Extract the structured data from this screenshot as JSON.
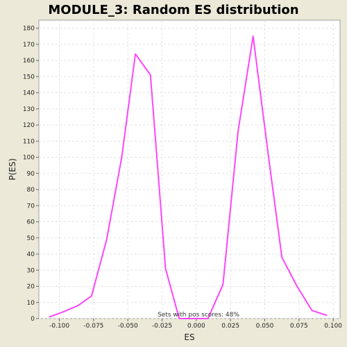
{
  "chart_data": {
    "type": "line",
    "title": "MODULE_3: Random ES distribution",
    "xlabel": "ES",
    "ylabel": "P(ES)",
    "xlim": [
      -0.115,
      0.105
    ],
    "ylim": [
      0,
      185
    ],
    "x_ticks": [
      -0.1,
      -0.075,
      -0.05,
      -0.025,
      0.0,
      0.025,
      0.05,
      0.075,
      0.1
    ],
    "x_tick_labels": [
      "-0.100",
      "-0.075",
      "-0.050",
      "-0.025",
      "0.000",
      "0.025",
      "0.050",
      "0.075",
      "0.100"
    ],
    "y_ticks": [
      0,
      10,
      20,
      30,
      40,
      50,
      60,
      70,
      80,
      90,
      100,
      110,
      120,
      130,
      140,
      150,
      160,
      170,
      180
    ],
    "grid": true,
    "annotation": "Sets with pos scores: 48%",
    "line_color": "#FF44FF",
    "series": [
      {
        "x": [
          -0.1075,
          -0.0975,
          -0.0865,
          -0.0765,
          -0.0655,
          -0.0545,
          -0.0445,
          -0.0335,
          -0.0225,
          -0.0125,
          -0.0015,
          0.0085,
          0.0195,
          0.0305,
          0.0415,
          0.0525,
          0.0625,
          0.0735,
          0.0845,
          0.0955
        ],
        "y": [
          1,
          4,
          8,
          14,
          49,
          100,
          164,
          151,
          31,
          0,
          0,
          0,
          21,
          116,
          175,
          102,
          38,
          20,
          5,
          2
        ]
      }
    ]
  }
}
